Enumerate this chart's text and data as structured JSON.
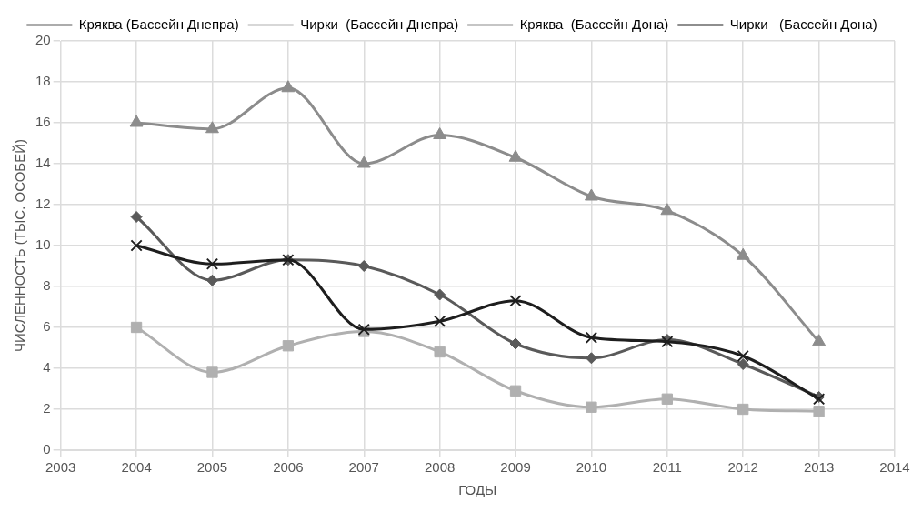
{
  "chart_data": {
    "type": "line",
    "xlabel": "ГОДЫ",
    "ylabel": "ЧИСЛЕННОСТЬ (ТЫС. ОСОБЕЙ)",
    "x": [
      2004,
      2005,
      2006,
      2007,
      2008,
      2009,
      2010,
      2011,
      2012,
      2013
    ],
    "series": [
      {
        "name": "Кряква (Бассейн Днепра)",
        "color": "#5a5a5a",
        "marker": "diamond",
        "values": [
          11.4,
          8.3,
          9.3,
          9.0,
          7.6,
          5.2,
          4.5,
          5.4,
          4.2,
          2.6
        ]
      },
      {
        "name": "Чирки  (Бассейн Днепра)",
        "color": "#b0b0b0",
        "marker": "square",
        "values": [
          6.0,
          3.8,
          5.1,
          5.8,
          4.8,
          2.9,
          2.1,
          2.5,
          2.0,
          1.9
        ]
      },
      {
        "name": "Кряква  (Бассейн Дона)",
        "color": "#8c8c8c",
        "marker": "triangle",
        "values": [
          16.0,
          15.7,
          17.7,
          14.0,
          15.4,
          14.3,
          12.4,
          11.7,
          9.5,
          5.3
        ]
      },
      {
        "name": "Чирки   (Бассейн Дона)",
        "color": "#1e1e1e",
        "marker": "cross",
        "values": [
          10.0,
          9.1,
          9.3,
          5.9,
          6.3,
          7.3,
          5.5,
          5.3,
          4.6,
          2.5
        ]
      }
    ],
    "xlim": [
      2003,
      2014
    ],
    "xticks": [
      2003,
      2004,
      2005,
      2006,
      2007,
      2008,
      2009,
      2010,
      2011,
      2012,
      2013,
      2014
    ],
    "ylim": [
      0,
      20
    ],
    "yticks": [
      0,
      2,
      4,
      6,
      8,
      10,
      12,
      14,
      16,
      18,
      20
    ],
    "grid": true,
    "legend": "top",
    "line_style": "solid"
  }
}
